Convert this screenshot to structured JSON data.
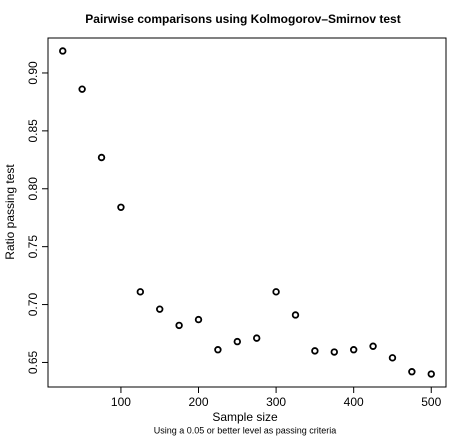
{
  "chart_data": {
    "type": "scatter",
    "title": "Pairwise comparisons using Kolmogorov–Smirnov test",
    "x_label": "Sample size",
    "y_label": "Ratio passing test",
    "subtitle": "Using a 0.05 or better level as passing criteria",
    "x": [
      25,
      50,
      75,
      100,
      125,
      150,
      175,
      200,
      225,
      250,
      275,
      300,
      325,
      350,
      375,
      400,
      425,
      450,
      475,
      500
    ],
    "values": [
      0.919,
      0.886,
      0.827,
      0.784,
      0.711,
      0.696,
      0.682,
      0.687,
      0.661,
      0.668,
      0.671,
      0.711,
      0.691,
      0.66,
      0.659,
      0.661,
      0.664,
      0.654,
      0.642,
      0.64
    ],
    "color": "#000000",
    "xlim": [
      6,
      519
    ],
    "ylim": [
      0.6288,
      0.9302
    ],
    "xticks": [
      100,
      200,
      300,
      400,
      500
    ],
    "yticks": [
      0.65,
      {
        "value": 0.7,
        "label": "0.70"
      },
      0.75,
      {
        "value": 0.8,
        "label": "0.80"
      },
      0.85,
      {
        "value": 0.9,
        "label": "0.90"
      }
    ]
  }
}
